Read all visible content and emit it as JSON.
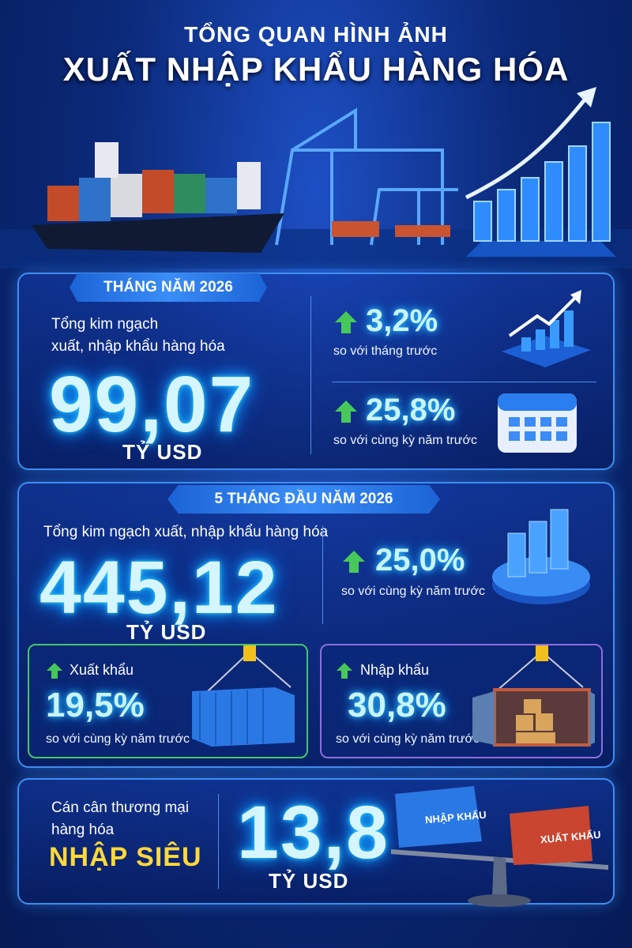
{
  "header": {
    "line1": "TỔNG QUAN HÌNH ẢNH",
    "line2": "XUẤT NHẬP KHẨU HÀNG HÓA"
  },
  "month": {
    "badge": "THÁNG NĂM 2026",
    "label": [
      "Tổng kim ngạch",
      "xuất, nhập khẩu hàng hóa"
    ],
    "value": "99,07",
    "unit": "TỶ USD",
    "changes": [
      {
        "value": "3,2%",
        "note": "so với tháng trước"
      },
      {
        "value": "25,8%",
        "note": "so với cùng kỳ năm trước"
      }
    ]
  },
  "five_months": {
    "badge": "5 THÁNG ĐẦU NĂM 2026",
    "label": "Tổng kim ngạch xuất, nhập khẩu hàng hóa",
    "value": "445,12",
    "unit": "TỶ USD",
    "change": {
      "value": "25,0%",
      "note": "so với cùng kỳ năm trước"
    },
    "export": {
      "label": "Xuất khẩu",
      "value": "19,5%",
      "note": "so với cùng kỳ năm trước"
    },
    "import": {
      "label": "Nhập khẩu",
      "value": "30,8%",
      "note": "so với cùng kỳ năm trước"
    }
  },
  "balance": {
    "label": [
      "Cán cân thương mại",
      "hàng hóa"
    ],
    "status": "NHẬP SIÊU",
    "value": "13,8",
    "unit": "TỶ USD",
    "scale": {
      "left": "NHẬP KHẨU",
      "right": "XUẤT KHẨU"
    }
  }
}
